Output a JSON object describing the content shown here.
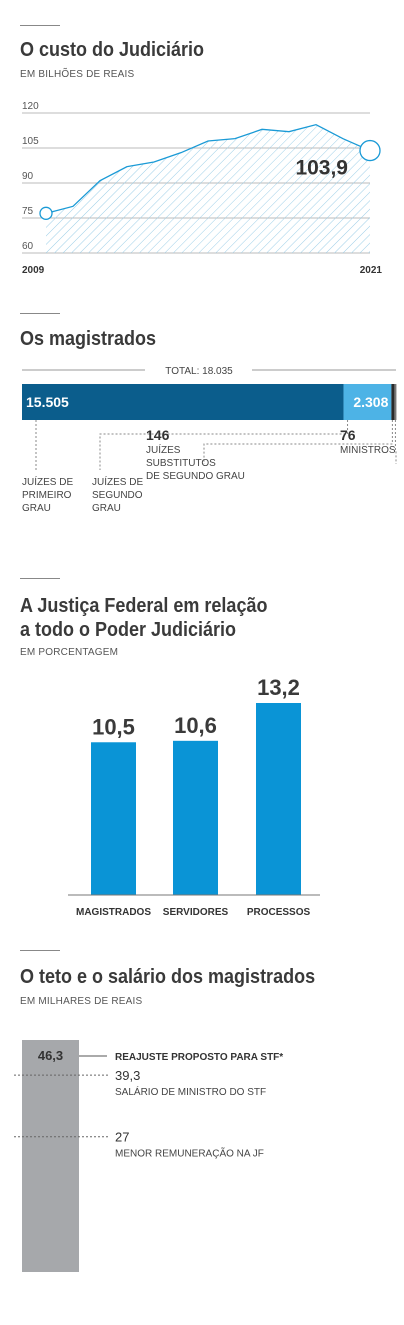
{
  "sections": {
    "custo": {
      "title": "O custo do Judiciário",
      "subtitle": "EM BILHÕES DE REAIS"
    },
    "magistrados": {
      "title": "Os magistrados",
      "total_label": "TOTAL: 18.035"
    },
    "federal": {
      "title_line1": "A Justiça Federal em relação",
      "title_line2": "a todo o Poder Judiciário",
      "subtitle": "EM PORCENTAGEM"
    },
    "teto": {
      "title": "O teto e o salário dos magistrados",
      "subtitle": "EM MILHARES DE REAIS"
    }
  },
  "colors": {
    "line": "#1a9ad6",
    "dark_blue": "#0b5d8c",
    "light_blue": "#4db3e6",
    "gray_bar": "#a6a8ab",
    "bar_blue": "#0a94d6"
  },
  "chart_data": [
    {
      "type": "area",
      "title": "O custo do Judiciário",
      "ylabel": "EM BILHÕES DE REAIS",
      "ylim": [
        60,
        120
      ],
      "yticks": [
        "120",
        "105",
        "90",
        "75",
        "60"
      ],
      "xtick_labels": [
        "2009",
        "2021"
      ],
      "x": [
        2009,
        2010,
        2011,
        2012,
        2013,
        2014,
        2015,
        2016,
        2017,
        2018,
        2019,
        2020,
        2021
      ],
      "values": [
        77,
        80,
        91,
        97,
        99,
        103,
        108,
        109,
        113,
        112,
        115,
        109,
        103.9
      ],
      "annotation": "103,9",
      "grid": true
    },
    {
      "type": "bar",
      "subtype": "stacked-horizontal",
      "title": "Os magistrados",
      "total": "TOTAL: 18.035",
      "segments": [
        {
          "value": 15505,
          "value_label": "15.505",
          "label_lines": [
            "JUÍZES DE",
            "PRIMEIRO",
            "GRAU"
          ],
          "color": "#0b5d8c"
        },
        {
          "value": 2308,
          "value_label": "2.308",
          "label_lines": [
            "JUÍZES DE",
            "SEGUNDO",
            "GRAU"
          ],
          "color": "#4db3e6"
        },
        {
          "value": 146,
          "value_label": "146",
          "label_lines": [
            "JUÍZES",
            "SUBSTITUTOS",
            "DE SEGUNDO GRAU"
          ],
          "color": "#2a2a2a"
        },
        {
          "value": 76,
          "value_label": "76",
          "label_lines": [
            "MINISTROS"
          ],
          "color": "#777777"
        }
      ]
    },
    {
      "type": "bar",
      "title": "A Justiça Federal em relação a todo o Poder Judiciário",
      "ylabel": "EM PORCENTAGEM",
      "categories": [
        "MAGISTRADOS",
        "SERVIDORES",
        "PROCESSOS"
      ],
      "values": [
        10.5,
        10.6,
        13.2
      ],
      "value_labels": [
        "10,5",
        "10,6",
        "13,2"
      ],
      "ylim": [
        0,
        13.2
      ]
    },
    {
      "type": "bar",
      "title": "O teto e o salário dos magistrados",
      "ylabel": "EM MILHARES DE REAIS",
      "bar_value": 46.3,
      "bar_label": "46,3",
      "bar_annotation": "REAJUSTE PROPOSTO PARA STF*",
      "markers": [
        {
          "value": 39.3,
          "value_label": "39,3",
          "label": "SALÁRIO DE MINISTRO DO STF"
        },
        {
          "value": 27,
          "value_label": "27",
          "label": "MENOR REMUNERAÇÃO NA JF"
        }
      ]
    }
  ]
}
